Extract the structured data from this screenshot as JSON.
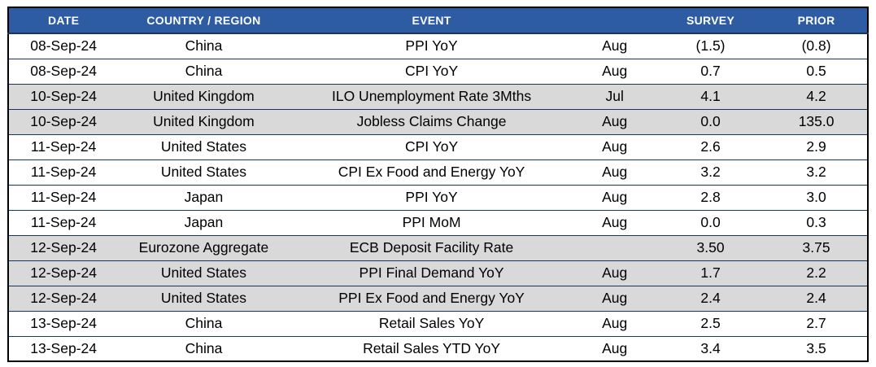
{
  "table": {
    "columns": [
      {
        "key": "date",
        "label": "DATE"
      },
      {
        "key": "country",
        "label": "COUNTRY / REGION"
      },
      {
        "key": "event",
        "label": "EVENT"
      },
      {
        "key": "period",
        "label": ""
      },
      {
        "key": "survey",
        "label": "SURVEY"
      },
      {
        "key": "prior",
        "label": "PRIOR"
      }
    ],
    "rows": [
      {
        "date": "08-Sep-24",
        "country": "China",
        "event": "PPI YoY",
        "period": "Aug",
        "survey": "(1.5)",
        "prior": "(0.8)",
        "shaded": false
      },
      {
        "date": "08-Sep-24",
        "country": "China",
        "event": "CPI YoY",
        "period": "Aug",
        "survey": "0.7",
        "prior": "0.5",
        "shaded": false
      },
      {
        "date": "10-Sep-24",
        "country": "United Kingdom",
        "event": "ILO Unemployment Rate 3Mths",
        "period": "Jul",
        "survey": "4.1",
        "prior": "4.2",
        "shaded": true
      },
      {
        "date": "10-Sep-24",
        "country": "United Kingdom",
        "event": "Jobless Claims Change",
        "period": "Aug",
        "survey": "0.0",
        "prior": "135.0",
        "shaded": true
      },
      {
        "date": "11-Sep-24",
        "country": "United States",
        "event": "CPI YoY",
        "period": "Aug",
        "survey": "2.6",
        "prior": "2.9",
        "shaded": false
      },
      {
        "date": "11-Sep-24",
        "country": "United States",
        "event": "CPI Ex Food and Energy YoY",
        "period": "Aug",
        "survey": "3.2",
        "prior": "3.2",
        "shaded": false
      },
      {
        "date": "11-Sep-24",
        "country": "Japan",
        "event": "PPI YoY",
        "period": "Aug",
        "survey": "2.8",
        "prior": "3.0",
        "shaded": false
      },
      {
        "date": "11-Sep-24",
        "country": "Japan",
        "event": "PPI MoM",
        "period": "Aug",
        "survey": "0.0",
        "prior": "0.3",
        "shaded": false
      },
      {
        "date": "12-Sep-24",
        "country": "Eurozone Aggregate",
        "event": "ECB Deposit Facility Rate",
        "period": "",
        "survey": "3.50",
        "prior": "3.75",
        "shaded": true
      },
      {
        "date": "12-Sep-24",
        "country": "United States",
        "event": "PPI Final Demand YoY",
        "period": "Aug",
        "survey": "1.7",
        "prior": "2.2",
        "shaded": true
      },
      {
        "date": "12-Sep-24",
        "country": "United States",
        "event": "PPI Ex Food and Energy YoY",
        "period": "Aug",
        "survey": "2.4",
        "prior": "2.4",
        "shaded": true
      },
      {
        "date": "13-Sep-24",
        "country": "China",
        "event": "Retail Sales YoY",
        "period": "Aug",
        "survey": "2.5",
        "prior": "2.7",
        "shaded": false
      },
      {
        "date": "13-Sep-24",
        "country": "China",
        "event": "Retail Sales YTD YoY",
        "period": "Aug",
        "survey": "3.4",
        "prior": "3.5",
        "shaded": false
      }
    ]
  },
  "colors": {
    "header_bg": "#2D5CA3",
    "header_text": "#FFFFFF",
    "row_shaded": "#D9D9D9",
    "row_plain": "#FFFFFF",
    "grid_line": "#17365D",
    "outer_border": "#000000"
  }
}
